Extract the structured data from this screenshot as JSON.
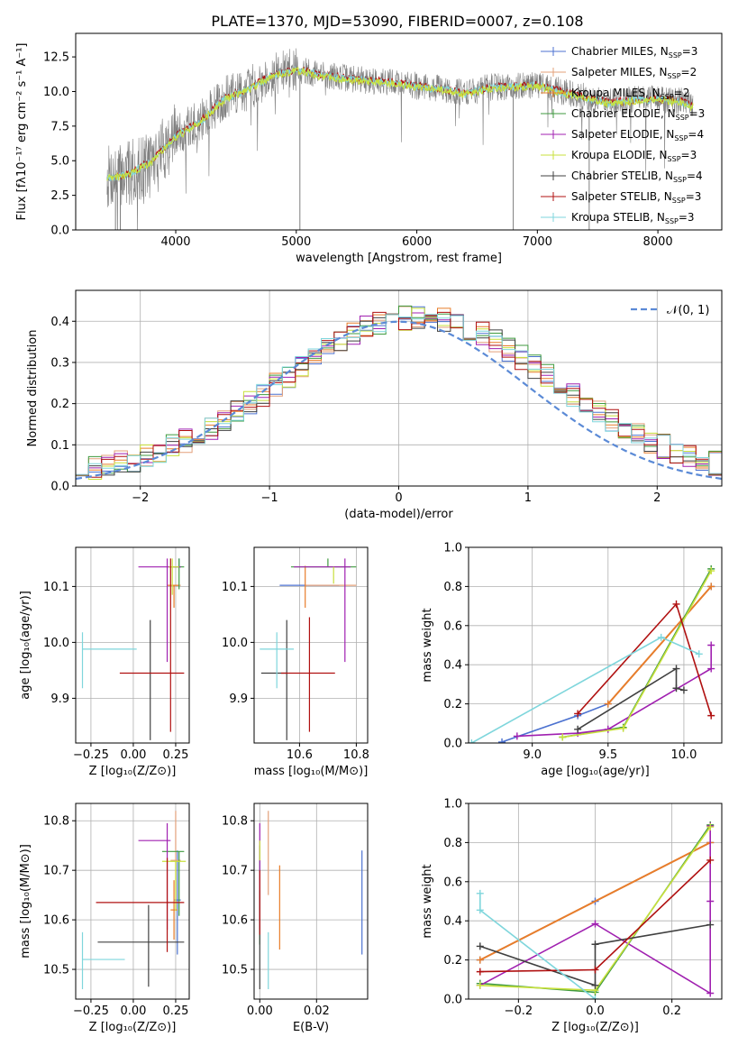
{
  "figure_title": "PLATE=1370, MJD=53090, FIBERID=0007, z=0.108",
  "models": [
    {
      "name": "Chabrier MILES, N",
      "sub": "SSP",
      "suffix": "=3",
      "color": "#4c72d0"
    },
    {
      "name": "Salpeter MILES, N",
      "sub": "SSP",
      "suffix": "=2",
      "color": "#e3a07a"
    },
    {
      "name": "Kroupa MILES, N",
      "sub": "SSP",
      "suffix": "=2",
      "color": "#e87d2a"
    },
    {
      "name": "Chabrier ELODIE, N",
      "sub": "SSP",
      "suffix": "=3",
      "color": "#3f9a3f"
    },
    {
      "name": "Salpeter ELODIE, N",
      "sub": "SSP",
      "suffix": "=4",
      "color": "#a020b0"
    },
    {
      "name": "Kroupa ELODIE, N",
      "sub": "SSP",
      "suffix": "=3",
      "color": "#c8e03c"
    },
    {
      "name": "Chabrier STELIB, N",
      "sub": "SSP",
      "suffix": "=4",
      "color": "#404040"
    },
    {
      "name": "Salpeter STELIB, N",
      "sub": "SSP",
      "suffix": "=3",
      "color": "#b01010"
    },
    {
      "name": "Kroupa STELIB, N",
      "sub": "SSP",
      "suffix": "=3",
      "color": "#7fd6dc"
    }
  ],
  "chart_data": [
    {
      "id": "spectrum",
      "type": "line",
      "xlabel": "wavelength [Angstrom, rest frame]",
      "ylabel": "Flux [fλ10⁻¹⁷ erg cm⁻² s⁻¹ A⁻¹]",
      "xlim": [
        3170,
        8530
      ],
      "ylim": [
        0,
        14.2
      ],
      "xticks": [
        "4000",
        "5000",
        "6000",
        "7000",
        "8000"
      ],
      "xtick_values": [
        4000,
        5000,
        6000,
        7000,
        8000
      ],
      "yticks": [
        "0.0",
        "2.5",
        "5.0",
        "7.5",
        "10.0",
        "12.5"
      ],
      "ytick_values": [
        0,
        2.5,
        5,
        7.5,
        10,
        12.5
      ],
      "x_range": [
        3430,
        8290
      ],
      "continuum": {
        "x": [
          3430,
          3600,
          3800,
          4000,
          4200,
          4400,
          4600,
          4800,
          5000,
          5200,
          5400,
          5600,
          5800,
          6000,
          6200,
          6400,
          6600,
          6800,
          7000,
          7200,
          7400,
          7600,
          7800,
          8000,
          8200,
          8290
        ],
        "y": [
          3.8,
          4.0,
          5.0,
          6.8,
          7.8,
          9.5,
          10.2,
          11.2,
          11.6,
          11.2,
          11.0,
          10.8,
          10.7,
          10.4,
          10.2,
          9.9,
          10.3,
          10.4,
          10.5,
          10.0,
          9.6,
          9.2,
          9.4,
          9.5,
          9.3,
          9.0
        ]
      },
      "legend_position": "right"
    },
    {
      "id": "residuals",
      "type": "step-histogram",
      "xlabel": "(data-model)/error",
      "ylabel": "Normed distribution",
      "xlim": [
        -2.5,
        2.5
      ],
      "ylim": [
        0,
        0.475
      ],
      "xticks": [
        "−2",
        "−1",
        "0",
        "1",
        "2"
      ],
      "xtick_values": [
        -2,
        -1,
        0,
        1,
        2
      ],
      "yticks": [
        "0.0",
        "0.1",
        "0.2",
        "0.3",
        "0.4"
      ],
      "ytick_values": [
        0,
        0.1,
        0.2,
        0.3,
        0.4
      ],
      "bin_width": 0.1,
      "legend_label": "𝒩(0, 1)",
      "legend_position": "top-right",
      "grid": true
    },
    {
      "id": "age-vs-z",
      "type": "errorbar",
      "xlabel": "Z [log₁₀(Z/Z⊙)]",
      "ylabel": "age  [log₁₀(age/yr)]",
      "xlim": [
        -0.34,
        0.33
      ],
      "ylim": [
        9.82,
        10.17
      ],
      "xticks": [
        "−0.25",
        "0.00",
        "0.25"
      ],
      "xtick_values": [
        -0.25,
        0,
        0.25
      ],
      "yticks": [
        "9.9",
        "10.0",
        "10.1"
      ],
      "ytick_values": [
        9.9,
        10.0,
        10.1
      ],
      "points": [
        {
          "model": 0,
          "x": 0.27,
          "xerr": [
            0.03,
            0.01
          ],
          "y": 10.135,
          "yerr": [
            0.0,
            0.015
          ]
        },
        {
          "model": 1,
          "x": 0.25,
          "xerr": [
            0.02,
            0.03
          ],
          "y": 10.102,
          "yerr": [
            0.0,
            0.0
          ]
        },
        {
          "model": 2,
          "x": 0.24,
          "xerr": [
            0.04,
            0.03
          ],
          "y": 10.102,
          "yerr": [
            0.04,
            0.0
          ]
        },
        {
          "model": 3,
          "x": 0.27,
          "xerr": [
            0.06,
            0.03
          ],
          "y": 10.135,
          "yerr": [
            0.04,
            0.015
          ]
        },
        {
          "model": 4,
          "x": 0.2,
          "xerr": [
            0.17,
            0.08
          ],
          "y": 10.135,
          "yerr": [
            0.17,
            0.015
          ]
        },
        {
          "model": 5,
          "x": 0.23,
          "xerr": [
            0.02,
            0.04
          ],
          "y": 10.135,
          "yerr": [
            0.05,
            0.015
          ]
        },
        {
          "model": 6,
          "x": 0.1,
          "xerr": [
            0.0,
            0.0
          ],
          "y": 9.945,
          "yerr": [
            0.12,
            0.095
          ]
        },
        {
          "model": 7,
          "x": 0.22,
          "xerr": [
            0.3,
            0.08
          ],
          "y": 9.945,
          "yerr": [
            0.105,
            0.205
          ]
        },
        {
          "model": 8,
          "x": -0.3,
          "xerr": [
            0.0,
            0.32
          ],
          "y": 9.988,
          "yerr": [
            0.07,
            0.03
          ]
        }
      ],
      "grid": true
    },
    {
      "id": "age-vs-mass",
      "type": "errorbar",
      "xlabel": "mass [log₁₀(M/M⊙)]",
      "ylabel": "",
      "xlim": [
        10.44,
        10.84
      ],
      "ylim": [
        9.82,
        10.17
      ],
      "xticks": [
        "10.6",
        "10.8"
      ],
      "xtick_values": [
        10.6,
        10.8
      ],
      "yticks": [
        "9.9",
        "10.0",
        "10.1"
      ],
      "ytick_values": [
        9.9,
        10.0,
        10.1
      ],
      "points": [
        {
          "model": 0,
          "x": 10.64,
          "xerr": [
            0.11,
            0.1
          ],
          "y": 10.102,
          "yerr": [
            0.0,
            0.0
          ]
        },
        {
          "model": 1,
          "x": 10.72,
          "xerr": [
            0.1,
            0.08
          ],
          "y": 10.102,
          "yerr": [
            0.0,
            0.0
          ]
        },
        {
          "model": 2,
          "x": 10.62,
          "xerr": [
            0.0,
            0.0
          ],
          "y": 10.102,
          "yerr": [
            0.04,
            0.035
          ]
        },
        {
          "model": 3,
          "x": 10.7,
          "xerr": [
            0.13,
            0.1
          ],
          "y": 10.135,
          "yerr": [
            0.0,
            0.015
          ]
        },
        {
          "model": 4,
          "x": 10.76,
          "xerr": [
            0.18,
            0.02
          ],
          "y": 10.135,
          "yerr": [
            0.17,
            0.015
          ]
        },
        {
          "model": 5,
          "x": 10.72,
          "xerr": [
            0.0,
            0.0
          ],
          "y": 10.135,
          "yerr": [
            0.03,
            0.0
          ]
        },
        {
          "model": 6,
          "x": 10.555,
          "xerr": [
            0.09,
            0.0
          ],
          "y": 9.945,
          "yerr": [
            0.12,
            0.095
          ]
        },
        {
          "model": 7,
          "x": 10.635,
          "xerr": [
            0.1,
            0.09
          ],
          "y": 9.945,
          "yerr": [
            0.105,
            0.1
          ]
        },
        {
          "model": 8,
          "x": 10.52,
          "xerr": [
            0.06,
            0.06
          ],
          "y": 9.988,
          "yerr": [
            0.07,
            0.03
          ]
        }
      ],
      "grid": true
    },
    {
      "id": "weight-vs-age",
      "type": "line",
      "xlabel": "age  [log₁₀(age/yr)]",
      "ylabel": "mass weight",
      "xlim": [
        8.58,
        10.25
      ],
      "ylim": [
        0,
        1.0
      ],
      "xticks": [
        "9.0",
        "9.5",
        "10.0"
      ],
      "xtick_values": [
        9,
        9.5,
        10
      ],
      "yticks": [
        "0.0",
        "0.2",
        "0.4",
        "0.6",
        "0.8",
        "1.0"
      ],
      "ytick_values": [
        0,
        0.2,
        0.4,
        0.6,
        0.8,
        1.0
      ],
      "series": [
        {
          "model": 0,
          "x": [
            8.8,
            9.3,
            9.5,
            10.18
          ],
          "y": [
            0.005,
            0.14,
            0.2,
            0.8
          ]
        },
        {
          "model": 2,
          "x": [
            9.5,
            10.18
          ],
          "y": [
            0.2,
            0.8
          ]
        },
        {
          "model": 3,
          "x": [
            9.2,
            9.6,
            10.18
          ],
          "y": [
            0.03,
            0.08,
            0.89
          ]
        },
        {
          "model": 4,
          "x": [
            8.9,
            9.3,
            9.5,
            10.18,
            10.18
          ],
          "y": [
            0.035,
            0.05,
            0.07,
            0.38,
            0.5
          ]
        },
        {
          "model": 5,
          "x": [
            9.2,
            9.6,
            10.18
          ],
          "y": [
            0.03,
            0.075,
            0.88
          ]
        },
        {
          "model": 6,
          "x": [
            9.3,
            9.95,
            9.95,
            10.0
          ],
          "y": [
            0.07,
            0.38,
            0.28,
            0.27
          ]
        },
        {
          "model": 7,
          "x": [
            9.3,
            9.95,
            10.18
          ],
          "y": [
            0.15,
            0.71,
            0.14
          ]
        },
        {
          "model": 8,
          "x": [
            8.6,
            9.85,
            10.1
          ],
          "y": [
            0.0,
            0.54,
            0.455
          ]
        }
      ],
      "grid": true
    },
    {
      "id": "mass-vs-z",
      "type": "errorbar",
      "xlabel": "Z [log₁₀(Z/Z⊙)]",
      "ylabel": "mass [log₁₀(M/M⊙)]",
      "xlim": [
        -0.34,
        0.33
      ],
      "ylim": [
        10.44,
        10.835
      ],
      "xticks": [
        "−0.25",
        "0.00",
        "0.25"
      ],
      "xtick_values": [
        -0.25,
        0,
        0.25
      ],
      "yticks": [
        "10.5",
        "10.6",
        "10.7",
        "10.8"
      ],
      "ytick_values": [
        10.5,
        10.6,
        10.7,
        10.8
      ],
      "points": [
        {
          "model": 0,
          "x": 0.26,
          "xerr": [
            0.02,
            0.02
          ],
          "y": 10.64,
          "yerr": [
            0.11,
            0.1
          ]
        },
        {
          "model": 1,
          "x": 0.25,
          "xerr": [
            0.03,
            0.03
          ],
          "y": 10.72,
          "yerr": [
            0.1,
            0.1
          ]
        },
        {
          "model": 2,
          "x": 0.24,
          "xerr": [
            0.02,
            0.02
          ],
          "y": 10.62,
          "yerr": [
            0.06,
            0.06
          ]
        },
        {
          "model": 3,
          "x": 0.27,
          "xerr": [
            0.1,
            0.03
          ],
          "y": 10.738,
          "yerr": [
            0.13,
            0.0
          ]
        },
        {
          "model": 4,
          "x": 0.2,
          "xerr": [
            0.17,
            0.02
          ],
          "y": 10.76,
          "yerr": [
            0.18,
            0.035
          ]
        },
        {
          "model": 5,
          "x": 0.25,
          "xerr": [
            0.08,
            0.06
          ],
          "y": 10.718,
          "yerr": [
            0.1,
            0.0
          ]
        },
        {
          "model": 6,
          "x": 0.09,
          "xerr": [
            0.3,
            0.21
          ],
          "y": 10.555,
          "yerr": [
            0.09,
            0.075
          ]
        },
        {
          "model": 7,
          "x": 0.2,
          "xerr": [
            0.42,
            0.1
          ],
          "y": 10.635,
          "yerr": [
            0.1,
            0.09
          ]
        },
        {
          "model": 8,
          "x": -0.3,
          "xerr": [
            0.0,
            0.25
          ],
          "y": 10.52,
          "yerr": [
            0.06,
            0.055
          ]
        }
      ],
      "grid": true
    },
    {
      "id": "mass-vs-ebv",
      "type": "errorbar",
      "xlabel": "E(B-V)",
      "ylabel": "",
      "xlim": [
        -0.002,
        0.038
      ],
      "ylim": [
        10.44,
        10.835
      ],
      "xticks": [
        "0.00",
        "0.02"
      ],
      "xtick_values": [
        0,
        0.02
      ],
      "yticks": [
        "10.5",
        "10.6",
        "10.7",
        "10.8"
      ],
      "ytick_values": [
        10.5,
        10.6,
        10.7,
        10.8
      ],
      "points": [
        {
          "model": 0,
          "x": 0.036,
          "xerr": [
            0.0,
            0.0
          ],
          "y": 10.635,
          "yerr": [
            0.105,
            0.105
          ]
        },
        {
          "model": 1,
          "x": 0.003,
          "xerr": [
            0.0,
            0.0
          ],
          "y": 10.73,
          "yerr": [
            0.08,
            0.09
          ]
        },
        {
          "model": 2,
          "x": 0.007,
          "xerr": [
            0.0,
            0.0
          ],
          "y": 10.625,
          "yerr": [
            0.085,
            0.085
          ]
        },
        {
          "model": 3,
          "x": 0.0,
          "xerr": [
            0.0,
            0.0
          ],
          "y": 10.68,
          "yerr": [
            0.13,
            0.07
          ]
        },
        {
          "model": 4,
          "x": 0.0,
          "xerr": [
            0.0,
            0.0
          ],
          "y": 10.7,
          "yerr": [
            0.12,
            0.095
          ]
        },
        {
          "model": 5,
          "x": 0.0,
          "xerr": [
            0.0,
            0.0
          ],
          "y": 10.74,
          "yerr": [
            0.02,
            0.02
          ]
        },
        {
          "model": 6,
          "x": 0.0,
          "xerr": [
            0.0,
            0.0
          ],
          "y": 10.56,
          "yerr": [
            0.1,
            0.1
          ]
        },
        {
          "model": 7,
          "x": 0.0,
          "xerr": [
            0.0,
            0.0
          ],
          "y": 10.64,
          "yerr": [
            0.07,
            0.06
          ]
        },
        {
          "model": 8,
          "x": 0.003,
          "xerr": [
            0.0,
            0.0
          ],
          "y": 10.52,
          "yerr": [
            0.06,
            0.055
          ]
        }
      ],
      "grid": true
    },
    {
      "id": "weight-vs-z",
      "type": "line",
      "xlabel": "Z [log₁₀(Z/Z⊙)]",
      "ylabel": "mass weight",
      "xlim": [
        -0.33,
        0.33
      ],
      "ylim": [
        0,
        1.0
      ],
      "xticks": [
        "−0.2",
        "0.0",
        "0.2"
      ],
      "xtick_values": [
        -0.2,
        0,
        0.2
      ],
      "yticks": [
        "0.0",
        "0.2",
        "0.4",
        "0.6",
        "0.8",
        "1.0"
      ],
      "ytick_values": [
        0,
        0.2,
        0.4,
        0.6,
        0.8,
        1.0
      ],
      "series": [
        {
          "model": 0,
          "x": [
            -0.3,
            0.0,
            0.3
          ],
          "y": [
            0.2,
            0.5,
            0.8
          ]
        },
        {
          "model": 2,
          "x": [
            -0.3,
            0.3
          ],
          "y": [
            0.2,
            0.8
          ]
        },
        {
          "model": 3,
          "x": [
            -0.3,
            0.0,
            0.3
          ],
          "y": [
            0.08,
            0.035,
            0.89
          ]
        },
        {
          "model": 4,
          "x": [
            -0.3,
            0.0,
            0.3,
            0.3,
            0.3
          ],
          "y": [
            0.07,
            0.385,
            0.03,
            0.5,
            0.885
          ]
        },
        {
          "model": 5,
          "x": [
            -0.3,
            0.0,
            0.3
          ],
          "y": [
            0.07,
            0.045,
            0.88
          ]
        },
        {
          "model": 6,
          "x": [
            -0.3,
            0.0,
            0.0,
            0.3
          ],
          "y": [
            0.27,
            0.07,
            0.28,
            0.38
          ]
        },
        {
          "model": 7,
          "x": [
            -0.3,
            0.0,
            0.3
          ],
          "y": [
            0.14,
            0.15,
            0.71
          ]
        },
        {
          "model": 8,
          "x": [
            -0.3,
            -0.3,
            0.0
          ],
          "y": [
            0.54,
            0.455,
            0.0
          ]
        }
      ],
      "grid": true
    }
  ]
}
